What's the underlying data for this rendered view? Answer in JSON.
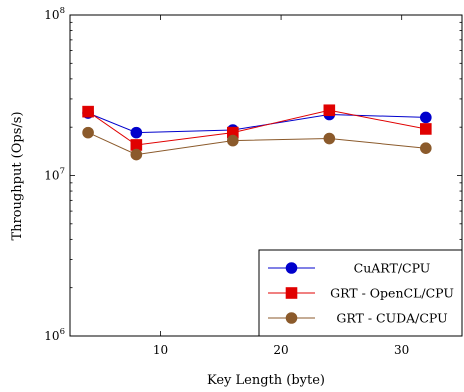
{
  "chart_data": {
    "type": "line",
    "xlabel": "Key Length (byte)",
    "ylabel": "Throughput (Ops/s)",
    "xlim": [
      2.5,
      35
    ],
    "ylim": [
      1000000,
      100000000
    ],
    "yscale": "log",
    "x_ticks": [
      10,
      20,
      30
    ],
    "y_ticks": [
      {
        "value": 1000000,
        "base": "10",
        "exp": "6"
      },
      {
        "value": 10000000,
        "base": "10",
        "exp": "7"
      },
      {
        "value": 100000000,
        "base": "10",
        "exp": "8"
      }
    ],
    "grid": false,
    "legend_position": "bottom-right",
    "x": [
      4,
      8,
      16,
      24,
      32
    ],
    "series": [
      {
        "name": "CuART/CPU",
        "color": "#0000cc",
        "marker": "circle",
        "values": [
          24500000,
          18500000,
          19200000,
          24000000,
          23000000
        ]
      },
      {
        "name": "GRT - OpenCL/CPU",
        "color": "#e00000",
        "marker": "square",
        "values": [
          25000000,
          15500000,
          18500000,
          25500000,
          19500000
        ]
      },
      {
        "name": "GRT - CUDA/CPU",
        "color": "#8b5a2b",
        "marker": "circle",
        "values": [
          18500000,
          13500000,
          16500000,
          17000000,
          14800000
        ]
      }
    ]
  }
}
